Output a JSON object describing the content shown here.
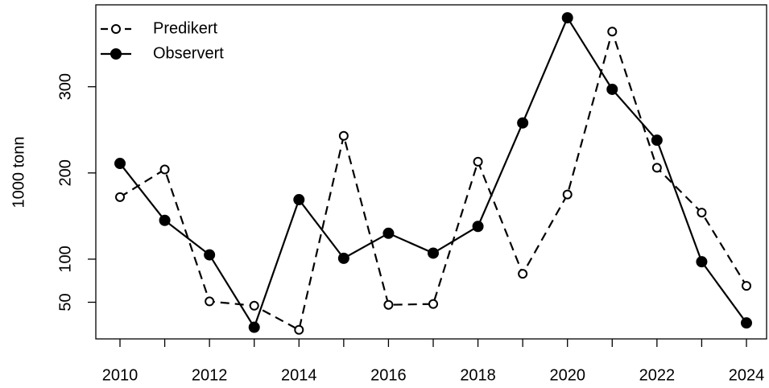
{
  "chart_data": {
    "type": "line",
    "y_label": "1000 tonn",
    "x": [
      2010,
      2011,
      2012,
      2013,
      2014,
      2015,
      2016,
      2017,
      2018,
      2019,
      2020,
      2021,
      2022,
      2023,
      2024
    ],
    "series": [
      {
        "name": "Predikert",
        "color": "#000000",
        "dashed": true,
        "filled": false,
        "values": [
          172,
          204,
          51,
          46,
          18,
          243,
          47,
          48,
          213,
          83,
          175,
          364,
          206,
          154,
          69
        ]
      },
      {
        "name": "Observert",
        "color": "#000000",
        "dashed": false,
        "filled": true,
        "values": [
          211,
          145,
          105,
          21,
          169,
          101,
          130,
          107,
          138,
          258,
          380,
          297,
          238,
          97,
          26
        ]
      }
    ],
    "xlim": [
      2009.46,
      2024.45
    ],
    "ylim": [
      7.5,
      395
    ],
    "xticks": [
      2010,
      2012,
      2014,
      2016,
      2018,
      2020,
      2022,
      2024
    ],
    "xticks_minor": [
      2011,
      2013,
      2015,
      2017,
      2019,
      2021,
      2023
    ],
    "yticks": [
      50,
      100,
      200,
      300
    ],
    "legend": "top-left"
  }
}
